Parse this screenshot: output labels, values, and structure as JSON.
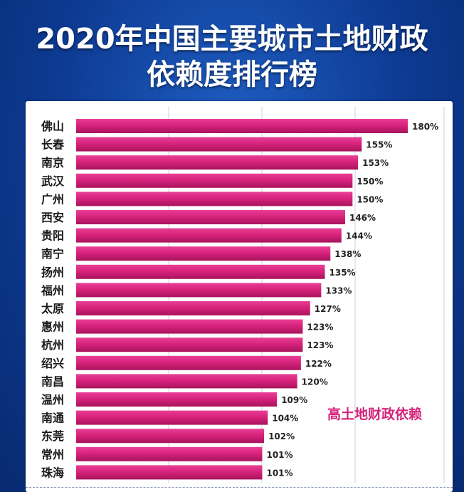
{
  "title_line1": "2020年中国主要城市土地财政",
  "title_line2": "依赖度排行榜",
  "annotation": "高土地财政依赖",
  "colors": {
    "bar": "#d8237c",
    "bar_light": "#e83f96",
    "bar_dark": "#a8145c",
    "note": "#d4237a",
    "background": "#0d3a92"
  },
  "chart_data": {
    "type": "bar",
    "orientation": "horizontal",
    "title": "2020年中国主要城市土地财政依赖度排行榜",
    "categories": [
      "佛山",
      "长春",
      "南京",
      "武汉",
      "广州",
      "西安",
      "贵阳",
      "南宁",
      "扬州",
      "福州",
      "太原",
      "惠州",
      "杭州",
      "绍兴",
      "南昌",
      "温州",
      "南通",
      "东莞",
      "常州",
      "珠海"
    ],
    "values": [
      180,
      155,
      153,
      150,
      150,
      146,
      144,
      138,
      135,
      133,
      127,
      123,
      123,
      122,
      120,
      109,
      104,
      102,
      101,
      101
    ],
    "labels": [
      "180%",
      "155%",
      "153%",
      "150%",
      "150%",
      "146%",
      "144%",
      "138%",
      "135%",
      "133%",
      "127%",
      "123%",
      "123%",
      "122%",
      "120%",
      "109%",
      "104%",
      "102%",
      "101%",
      "101%"
    ],
    "unit": "%",
    "grid": true,
    "legend": "none"
  }
}
